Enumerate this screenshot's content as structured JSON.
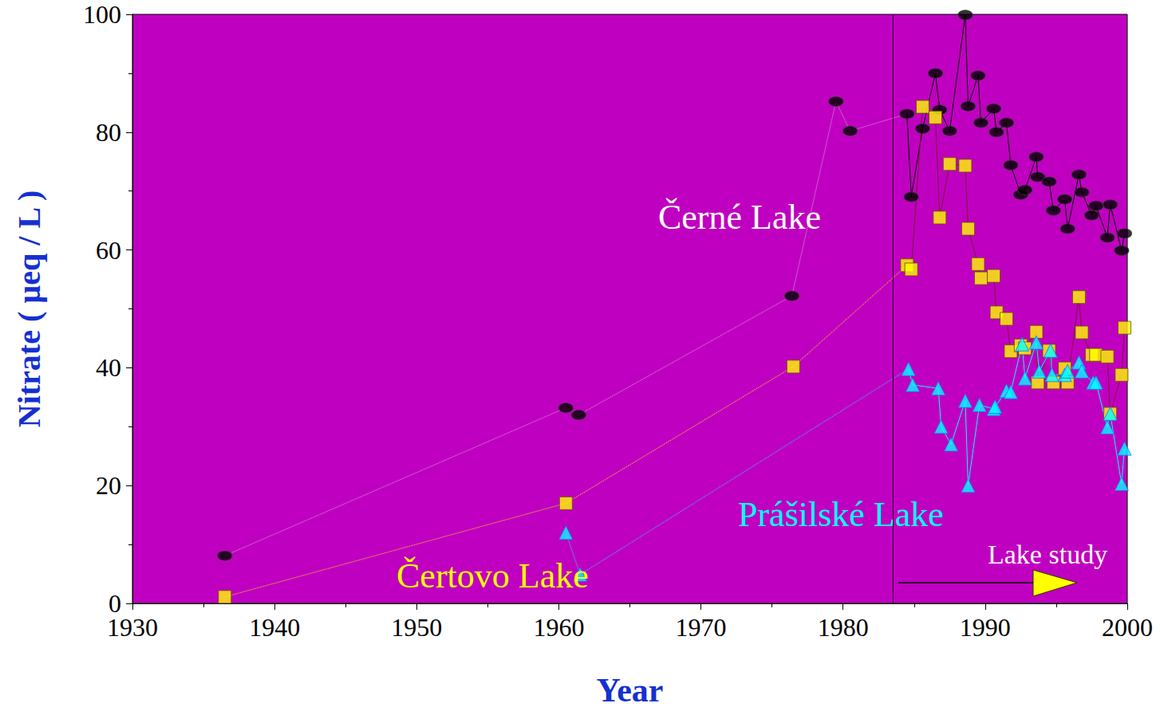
{
  "chart_data": {
    "type": "line",
    "xlabel": "Year",
    "ylabel": "Nitrate ( µeq / L )",
    "xlim": [
      1930,
      2000
    ],
    "xticks": [
      1930,
      1940,
      1950,
      1960,
      1970,
      1980,
      1990,
      2000
    ],
    "ylim": [
      0,
      100
    ],
    "yticks": [
      0,
      20,
      40,
      60,
      80,
      100
    ],
    "grid": false,
    "annotations": [
      {
        "text": "Lake study",
        "x": 1983.5
      }
    ],
    "series": [
      {
        "name": "Černé Lake",
        "color": "#000000",
        "marker": "ellipse",
        "x": [
          1936.5,
          1960.5,
          1961.4,
          1976.4,
          1979.5,
          1980.5,
          1984.5,
          1984.8,
          1985.6,
          1986.5,
          1986.8,
          1987.5,
          1988.6,
          1988.8,
          1989.5,
          1989.7,
          1990.6,
          1990.8,
          1991.5,
          1991.8,
          1992.5,
          1992.8,
          1993.6,
          1993.7,
          1994.5,
          1994.8,
          1995.6,
          1995.8,
          1996.6,
          1996.8,
          1997.5,
          1997.8,
          1998.6,
          1998.8,
          1999.6,
          1999.8
        ],
        "values": [
          8.1,
          33.2,
          32,
          52.2,
          85.2,
          80.2,
          83.1,
          69,
          80.6,
          90,
          83.8,
          80.2,
          99.9,
          84.4,
          89.6,
          81.6,
          84,
          80,
          81.6,
          74.4,
          69.4,
          70.2,
          75.8,
          72.4,
          71.6,
          66.7,
          68.6,
          63.6,
          72.8,
          69.8,
          65.9,
          67.5,
          62.1,
          67.7,
          59.9,
          62.8
        ]
      },
      {
        "name": "Čertovo Lake",
        "color": "#ffff00",
        "marker": "square",
        "x": [
          1936.5,
          1960.5,
          1976.5,
          1984.5,
          1984.8,
          1985.6,
          1986.5,
          1986.8,
          1987.5,
          1988.6,
          1988.8,
          1989.5,
          1989.7,
          1990.6,
          1990.8,
          1991.5,
          1991.8,
          1992.5,
          1992.8,
          1993.6,
          1993.7,
          1994.5,
          1994.8,
          1995.6,
          1995.8,
          1996.6,
          1996.8,
          1997.5,
          1997.8,
          1998.6,
          1998.8,
          1999.6,
          1999.8
        ],
        "values": [
          1.1,
          17,
          40.2,
          57.4,
          56.7,
          84.3,
          82.5,
          65.5,
          74.6,
          74.3,
          63.6,
          57.6,
          55.2,
          55.6,
          49.4,
          48.3,
          42.8,
          43.8,
          43.3,
          46.1,
          37.5,
          42.9,
          37.5,
          39.9,
          37.5,
          52,
          46,
          42.2,
          42.2,
          41.9,
          32.2,
          38.8,
          46.8
        ]
      },
      {
        "name": "Prášilské Lake",
        "color": "#00ffff",
        "marker": "triangle",
        "x": [
          1960.5,
          1961.5,
          1984.6,
          1984.9,
          1986.7,
          1986.9,
          1987.6,
          1988.6,
          1988.8,
          1989.6,
          1990.6,
          1990.7,
          1991.5,
          1991.8,
          1992.6,
          1992.8,
          1993.6,
          1993.8,
          1994.6,
          1994.7,
          1995.6,
          1995.8,
          1996.6,
          1996.8,
          1997.6,
          1997.8,
          1998.6,
          1998.8,
          1999.6,
          1999.8
        ],
        "values": [
          12,
          4.9,
          39.8,
          37.1,
          36.5,
          30,
          27,
          34.4,
          20,
          33.7,
          33,
          33.4,
          36.1,
          35.9,
          44,
          38.2,
          44.3,
          39.4,
          42.9,
          38.8,
          38.8,
          39.4,
          40.9,
          39.4,
          37.5,
          37.5,
          29.9,
          32.2,
          20.3,
          26.3
        ]
      }
    ]
  }
}
